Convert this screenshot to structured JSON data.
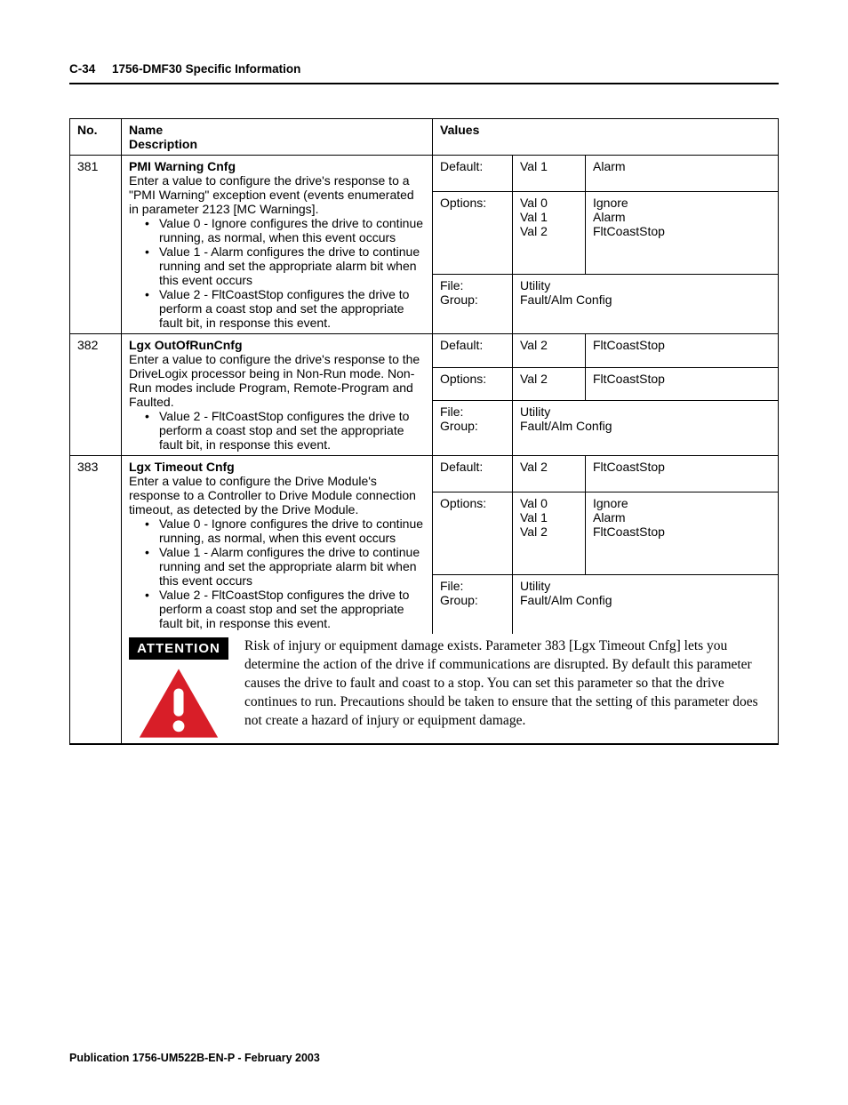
{
  "header": {
    "page_num": "C-34",
    "title": "1756-DMF30 Specific Information"
  },
  "table": {
    "head": {
      "no": "No.",
      "name": "Name",
      "desc": "Description",
      "values": "Values"
    },
    "labels": {
      "default": "Default:",
      "options": "Options:",
      "file": "File:",
      "group": "Group:"
    },
    "rows": [
      {
        "no": "381",
        "name": "PMI Warning Cnfg",
        "desc_intro": "Enter a value to configure the drive's response to a \"PMI Warning\" exception event (events enumerated in parameter 2123 [MC Warnings].",
        "bullets": [
          "Value 0 - Ignore configures the drive to continue running, as normal, when this event occurs",
          "Value 1 - Alarm configures the drive to continue running and set the appropriate alarm bit when this event occurs",
          "Value 2 - FltCoastStop configures the drive to perform a coast stop and set the appropriate fault bit, in response this event."
        ],
        "default_val": "Val 1",
        "default_name": "Alarm",
        "options": [
          {
            "val": "Val 0",
            "name": "Ignore"
          },
          {
            "val": "Val 1",
            "name": "Alarm"
          },
          {
            "val": "Val  2",
            "name": "FltCoastStop"
          }
        ],
        "file": "Utility",
        "group": "Fault/Alm Config"
      },
      {
        "no": "382",
        "name": "Lgx OutOfRunCnfg",
        "desc_intro": "Enter a value to configure the drive's response to the DriveLogix processor being in Non-Run mode.  Non-Run modes include Program, Remote-Program and Faulted.",
        "bullets": [
          "Value 2 - FltCoastStop configures the drive to perform a coast stop and set the appropriate fault bit, in response this event."
        ],
        "default_val": "Val  2",
        "default_name": "FltCoastStop",
        "options": [
          {
            "val": "Val  2",
            "name": "FltCoastStop"
          }
        ],
        "file": "Utility",
        "group": "Fault/Alm Config"
      },
      {
        "no": "383",
        "name": "Lgx Timeout Cnfg",
        "desc_intro": "Enter a value to configure the Drive Module's response to a Controller to Drive Module connection timeout, as detected by the Drive Module.",
        "bullets": [
          "Value 0 - Ignore configures the drive to continue running, as normal, when this event occurs",
          "Value 1 - Alarm configures the drive to continue running and set the appropriate alarm bit when this event occurs",
          "Value 2 - FltCoastStop configures the drive to perform a coast stop and set the appropriate fault bit, in response this event."
        ],
        "default_val": "Val 2",
        "default_name": "FltCoastStop",
        "options": [
          {
            "val": "Val 0",
            "name": "Ignore"
          },
          {
            "val": "Val 1",
            "name": "Alarm"
          },
          {
            "val": "Val 2",
            "name": "FltCoastStop"
          }
        ],
        "file": "Utility",
        "group": "Fault/Alm Config"
      }
    ]
  },
  "attention": {
    "label": "ATTENTION",
    "icon_colors": {
      "triangle": "#d81e28",
      "bang": "#ffffff"
    },
    "text": "Risk of injury or equipment damage exists.  Parameter 383 [Lgx Timeout Cnfg] lets you determine the action of the drive if communications are disrupted.  By default this parameter causes the drive to fault and coast to a stop.  You can set this parameter so that the drive continues to run.  Precautions  should be taken to ensure that the setting of this parameter does not create a hazard of injury or equipment damage."
  },
  "footer": "Publication 1756-UM522B-EN-P - February 2003"
}
